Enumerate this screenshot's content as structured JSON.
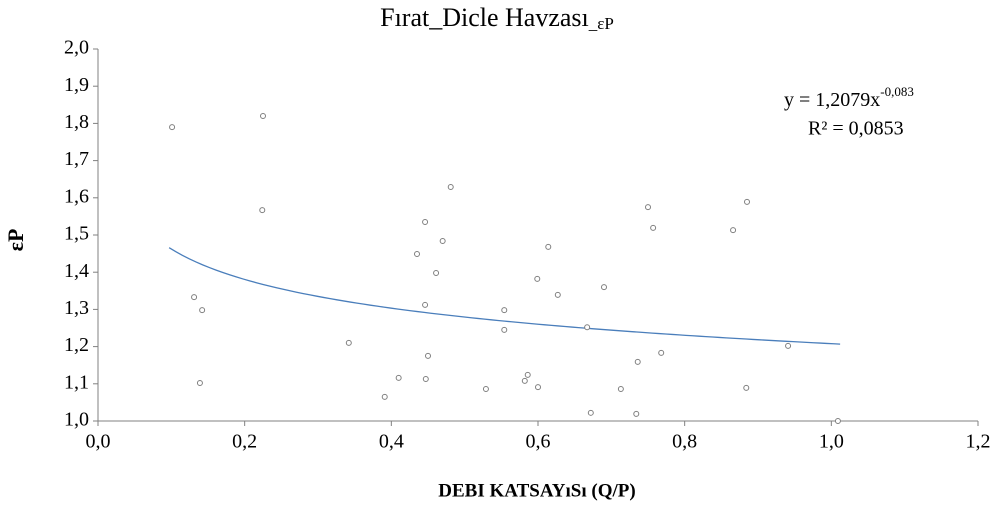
{
  "chart_data": {
    "type": "scatter",
    "title": "Fırat_Dicle Havzası",
    "title_subscript": "_εP",
    "x_label": "DEBI KATSAYıSı (Q/P)",
    "y_label": "εP",
    "color": "#7f7f7f",
    "x": [
      0.101,
      0.225,
      0.224,
      0.131,
      0.142,
      0.139,
      0.342,
      0.391,
      0.41,
      0.435,
      0.446,
      0.446,
      0.447,
      0.45,
      0.461,
      0.47,
      0.481,
      0.529,
      0.554,
      0.554,
      0.582,
      0.586,
      0.599,
      0.6,
      0.614,
      0.627,
      0.667,
      0.69,
      0.672,
      0.713,
      0.736,
      0.734,
      0.75,
      0.757,
      0.768,
      0.866,
      0.885,
      0.884,
      0.941,
      1.009
    ],
    "values": [
      1.79,
      1.82,
      1.567,
      1.333,
      1.298,
      1.102,
      1.21,
      1.065,
      1.116,
      1.449,
      1.535,
      1.312,
      1.113,
      1.175,
      1.398,
      1.484,
      1.629,
      1.086,
      1.298,
      1.245,
      1.108,
      1.124,
      1.382,
      1.091,
      1.468,
      1.339,
      1.252,
      1.36,
      1.022,
      1.086,
      1.159,
      1.019,
      1.575,
      1.519,
      1.183,
      1.513,
      1.589,
      1.089,
      1.202,
      1.0
    ],
    "xlim": [
      0,
      1.2
    ],
    "xticks": [
      {
        "value": 0,
        "label": "0,0"
      },
      {
        "value": 0.2,
        "label": "0,2"
      },
      {
        "value": 0.4,
        "label": "0,4"
      },
      {
        "value": 0.6,
        "label": "0,6"
      },
      {
        "value": 0.8,
        "label": "0,8"
      },
      {
        "value": 1.0,
        "label": "1,0"
      },
      {
        "value": 1.2,
        "label": "1,2"
      }
    ],
    "ylim": [
      1,
      2
    ],
    "yticks": [
      {
        "value": 1,
        "label": "1,0"
      },
      {
        "value": 1.1,
        "label": "1,1"
      },
      {
        "value": 1.2,
        "label": "1,2"
      },
      {
        "value": 1.3,
        "label": "1,3"
      },
      {
        "value": 1.4,
        "label": "1,4"
      },
      {
        "value": 1.5,
        "label": "1,5"
      },
      {
        "value": 1.6,
        "label": "1,6"
      },
      {
        "value": 1.7,
        "label": "1,7"
      },
      {
        "value": 1.8,
        "label": "1,8"
      },
      {
        "value": 1.9,
        "label": "1,9"
      },
      {
        "value": 2,
        "label": "2,0"
      }
    ],
    "grid": false,
    "trendline": {
      "type": "power",
      "coef": 1.2079,
      "exponent": -0.083,
      "x_range": [
        0.097,
        1.012
      ],
      "color": "#4a7ebb",
      "equation_label": "y = 1,2079x",
      "exponent_label": "-0,083",
      "r2_label": "R² = 0,0853"
    }
  }
}
